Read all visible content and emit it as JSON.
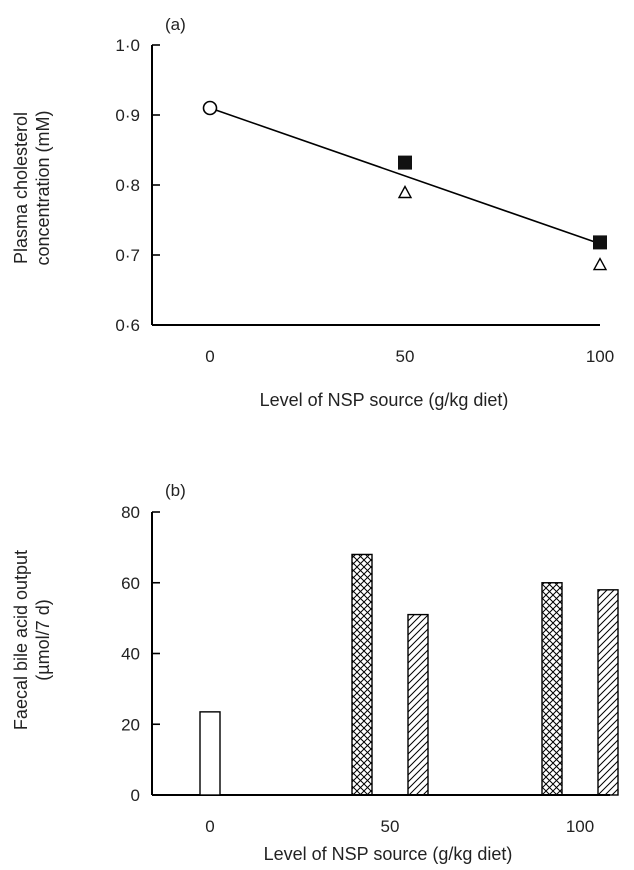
{
  "chart_data": [
    {
      "type": "scatter",
      "panel_label": "(a)",
      "ylabel_line1": "Plasma cholesterol",
      "ylabel_line2": "concentration (mM)",
      "xlabel": "Level of NSP source (g/kg diet)",
      "x_ticks": [
        "0",
        "50",
        "100"
      ],
      "y_ticks": [
        "0·6",
        "0·7",
        "0·8",
        "0·9",
        "1·0"
      ],
      "x_values": [
        0,
        50,
        100
      ],
      "ylim": [
        0.6,
        1.0
      ],
      "series": [
        {
          "marker": "open-circle",
          "points": [
            {
              "x": 0,
              "y": 0.91
            }
          ]
        },
        {
          "marker": "filled-square",
          "points": [
            {
              "x": 50,
              "y": 0.832
            },
            {
              "x": 100,
              "y": 0.718
            }
          ]
        },
        {
          "marker": "open-triangle",
          "points": [
            {
              "x": 50,
              "y": 0.79
            },
            {
              "x": 100,
              "y": 0.687
            }
          ]
        }
      ],
      "fit_line": [
        {
          "x": 0,
          "y": 0.91
        },
        {
          "x": 100,
          "y": 0.716
        }
      ],
      "grid": false
    },
    {
      "type": "bar",
      "panel_label": "(b)",
      "ylabel_line1": "Faecal bile acid output",
      "ylabel_line2": "(µmol/7 d)",
      "xlabel": "Level of NSP source (g/kg diet)",
      "categories": [
        "0",
        "50",
        "100"
      ],
      "y_ticks": [
        "0",
        "20",
        "40",
        "60",
        "80"
      ],
      "ylim": [
        0,
        80
      ],
      "bars": [
        {
          "category": "0",
          "pattern": "open",
          "value": 23.5
        },
        {
          "category": "50",
          "pattern": "cross-hatch",
          "value": 68
        },
        {
          "category": "50",
          "pattern": "diagonal-hatch",
          "value": 51
        },
        {
          "category": "100",
          "pattern": "cross-hatch",
          "value": 60
        },
        {
          "category": "100",
          "pattern": "diagonal-hatch",
          "value": 58
        }
      ],
      "grid": false
    }
  ]
}
